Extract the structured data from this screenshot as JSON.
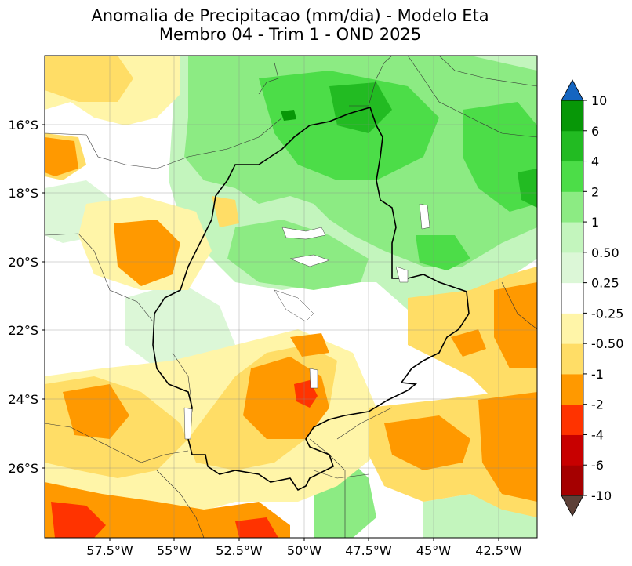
{
  "figure": {
    "title_line1": "Anomalia de Precipitacao (mm/dia) - Modelo Eta",
    "title_line2": "Membro 04 - Trim 1 - OND 2025"
  },
  "map": {
    "variable": "Precipitation anomaly",
    "units": "mm/dia",
    "lon_range": [
      -60.0,
      -41.0
    ],
    "lat_range": [
      -28.0,
      -14.0
    ],
    "lat_ticks": [
      {
        "value": -16,
        "label": "16°S"
      },
      {
        "value": -18,
        "label": "18°S"
      },
      {
        "value": -20,
        "label": "20°S"
      },
      {
        "value": -22,
        "label": "22°S"
      },
      {
        "value": -24,
        "label": "24°S"
      },
      {
        "value": -26,
        "label": "26°S"
      }
    ],
    "lon_ticks": [
      {
        "value": -57.5,
        "label": "57.5°W"
      },
      {
        "value": -55,
        "label": "55°W"
      },
      {
        "value": -52.5,
        "label": "52.5°W"
      },
      {
        "value": -50,
        "label": "50°W"
      },
      {
        "value": -47.5,
        "label": "47.5°W"
      },
      {
        "value": -45,
        "label": "45°W"
      },
      {
        "value": -42.5,
        "label": "42.5°W"
      }
    ]
  },
  "colorbar": {
    "extend_max_color": "#1565c0",
    "extend_min_color": "#5d4037",
    "bins": [
      {
        "label": "-10",
        "color": "#a50000"
      },
      {
        "label": "-6",
        "color": "#c80000"
      },
      {
        "label": "-4",
        "color": "#ff3300"
      },
      {
        "label": "-2",
        "color": "#ff9900"
      },
      {
        "label": "-1",
        "color": "#ffdd66"
      },
      {
        "label": "-0.50",
        "color": "#fff5a8"
      },
      {
        "label": "-0.25",
        "color": "#ffffff"
      },
      {
        "label": "0.25",
        "color": "#dcf7d7"
      },
      {
        "label": "0.50",
        "color": "#c3f5bd"
      },
      {
        "label": "1",
        "color": "#8ceb83"
      },
      {
        "label": "2",
        "color": "#4cdd48"
      },
      {
        "label": "4",
        "color": "#22bb22"
      },
      {
        "label": "6",
        "color": "#079707"
      },
      {
        "label": "10",
        "color": "#079707"
      }
    ]
  }
}
